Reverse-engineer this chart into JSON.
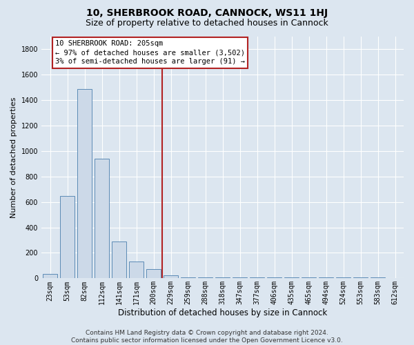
{
  "title": "10, SHERBROOK ROAD, CANNOCK, WS11 1HJ",
  "subtitle": "Size of property relative to detached houses in Cannock",
  "xlabel": "Distribution of detached houses by size in Cannock",
  "ylabel": "Number of detached properties",
  "footer_line1": "Contains HM Land Registry data © Crown copyright and database right 2024.",
  "footer_line2": "Contains public sector information licensed under the Open Government Licence v3.0.",
  "bin_labels": [
    "23sqm",
    "53sqm",
    "82sqm",
    "112sqm",
    "141sqm",
    "171sqm",
    "200sqm",
    "229sqm",
    "259sqm",
    "288sqm",
    "318sqm",
    "347sqm",
    "377sqm",
    "406sqm",
    "435sqm",
    "465sqm",
    "494sqm",
    "524sqm",
    "553sqm",
    "583sqm",
    "612sqm"
  ],
  "bar_heights": [
    35,
    648,
    1488,
    940,
    290,
    130,
    70,
    22,
    10,
    5,
    5,
    5,
    5,
    5,
    5,
    5,
    5,
    5,
    5,
    5,
    0
  ],
  "bar_color": "#ccd9e8",
  "bar_edge_color": "#5b8ab5",
  "vline_x_index": 6,
  "vline_color": "#b22222",
  "annotation_text": "10 SHERBROOK ROAD: 205sqm\n← 97% of detached houses are smaller (3,502)\n3% of semi-detached houses are larger (91) →",
  "annotation_box_color": "#ffffff",
  "annotation_box_edge_color": "#b22222",
  "ylim": [
    0,
    1900
  ],
  "yticks": [
    0,
    200,
    400,
    600,
    800,
    1000,
    1200,
    1400,
    1600,
    1800
  ],
  "background_color": "#dce6f0",
  "grid_color": "#ffffff",
  "title_fontsize": 10,
  "subtitle_fontsize": 9,
  "ylabel_fontsize": 8,
  "xlabel_fontsize": 8.5,
  "tick_fontsize": 7,
  "annotation_fontsize": 7.5,
  "footer_fontsize": 6.5
}
